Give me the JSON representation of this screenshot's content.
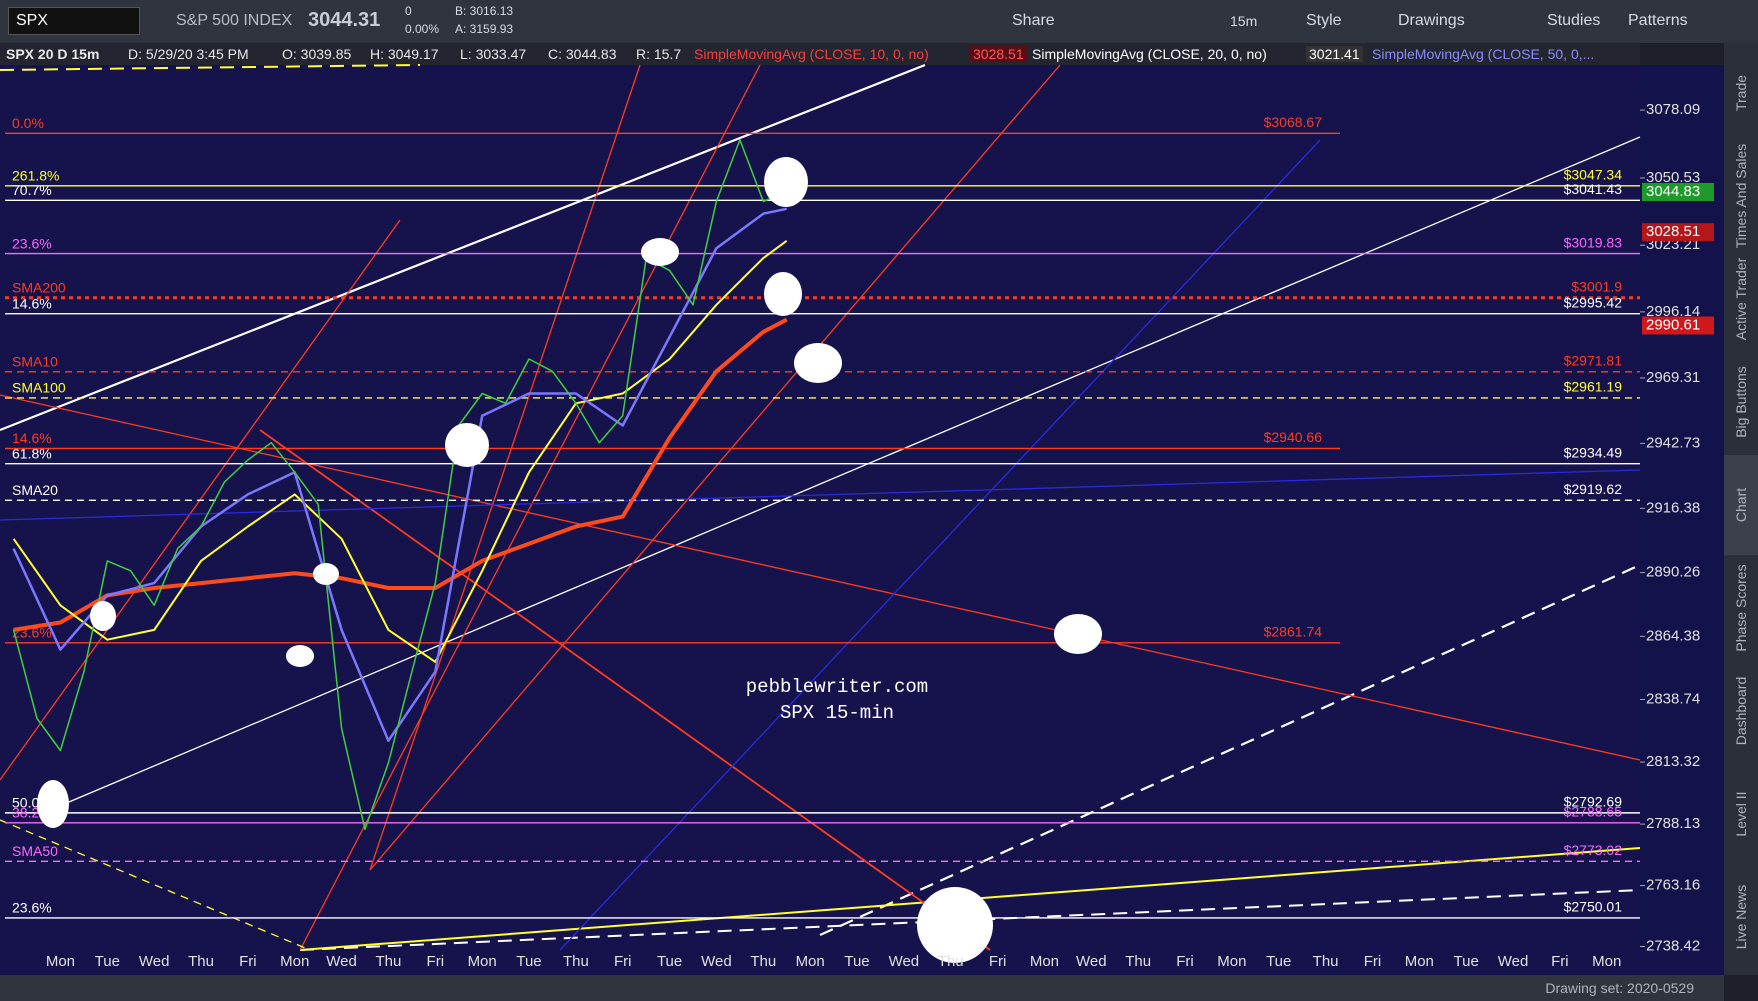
{
  "toolbar": {
    "symbol": "SPX",
    "description": "S&P 500 INDEX",
    "last": "3044.31",
    "change": "0",
    "change_pct": "0.00%",
    "bid": "B: 3016.13",
    "ask": "A: 3159.93",
    "buttons": [
      "Share",
      "15m",
      "Style",
      "Drawings",
      "Studies",
      "Patterns"
    ]
  },
  "info_bar": {
    "chart_name": "SPX 20 D 15m",
    "date": "D: 5/29/20 3:45 PM",
    "open": "O: 3039.85",
    "high": "H: 3049.17",
    "low": "L: 3033.47",
    "close": "C: 3044.83",
    "range": "R: 15.7",
    "study1": "SimpleMovingAvg (CLOSE, 10, 0, no)",
    "study1_value": "3028.51",
    "study2": "SimpleMovingAvg (CLOSE, 20, 0, no)",
    "study2_value": "3021.41",
    "study3": "SimpleMovingAvg (CLOSE, 50, 0,..."
  },
  "side_tabs": [
    "Trade",
    "Times And Sales",
    "Active Trader",
    "Big Buttons",
    "Chart",
    "Phase Scores",
    "Dashboard",
    "Level II",
    "Live News"
  ],
  "status_bar": {
    "drawing_set": "Drawing set: 2020-0529"
  },
  "chart_data": {
    "type": "line",
    "annotations": [
      "pebblewriter.com",
      "SPX 15-min"
    ],
    "categories": [
      "Mon",
      "Tue",
      "Wed",
      "Thu",
      "Fri",
      "Mon",
      "Wed",
      "Thu",
      "Fri",
      "Mon",
      "Tue",
      "Thu",
      "Fri",
      "Tue",
      "Wed",
      "Thu",
      "Mon",
      "Tue",
      "Wed",
      "Thu",
      "Fri",
      "Mon",
      "Wed",
      "Thu",
      "Fri",
      "Mon",
      "Tue",
      "Thu",
      "Fri",
      "Mon",
      "Tue",
      "Wed",
      "Fri",
      "Mon"
    ],
    "xlim": [
      -1.29,
      33.71
    ],
    "ylim": [
      2737,
      3096.4
    ],
    "yticks": [
      3078.09,
      3050.53,
      3023.21,
      2996.14,
      2969.31,
      2942.73,
      2916.38,
      2890.26,
      2864.38,
      2838.74,
      2813.32,
      2788.13,
      2763.16,
      2738.42
    ],
    "series": [
      {
        "name": "SMA200",
        "color": "#ff4a1c",
        "width": 4,
        "x": [
          -1,
          0,
          1,
          2,
          3,
          4,
          5,
          6,
          7,
          8,
          9,
          10,
          11,
          12,
          13,
          14,
          15,
          15.5
        ],
        "values": [
          2867,
          2870,
          2881,
          2884,
          2886,
          2888,
          2890,
          2888,
          2884,
          2884,
          2895,
          2902,
          2909,
          2913,
          2945,
          2972,
          2988,
          2993
        ]
      },
      {
        "name": "SMA100",
        "color": "#ffff33",
        "width": 2,
        "x": [
          -1,
          0,
          1,
          2,
          3,
          4,
          5,
          6,
          7,
          8,
          9,
          10,
          11,
          12,
          13,
          14,
          15,
          15.5
        ],
        "values": [
          2904,
          2877,
          2863,
          2867,
          2895,
          2909,
          2922,
          2904,
          2867,
          2854,
          2891,
          2931,
          2959,
          2963,
          2977,
          2999,
          3018,
          3025
        ]
      },
      {
        "name": "SMA50",
        "color": "#7b78ff",
        "width": 2.5,
        "x": [
          -1,
          0,
          1,
          2,
          3,
          4,
          5,
          6,
          7,
          8,
          9,
          10,
          11,
          12,
          13,
          14,
          15,
          15.5
        ],
        "values": [
          2900,
          2859,
          2881,
          2886,
          2909,
          2922,
          2931,
          2867,
          2822,
          2850,
          2954,
          2963,
          2963,
          2950,
          2986,
          3022,
          3036,
          3038
        ]
      },
      {
        "name": "SPX",
        "color": "#3fcf3f",
        "width": 1.5,
        "x": [
          -1,
          -0.5,
          0,
          0.5,
          1,
          1.5,
          2,
          2.5,
          3,
          3.5,
          4,
          4.5,
          5,
          5.5,
          6,
          6.5,
          7,
          7.5,
          8,
          8.5,
          9,
          9.5,
          10,
          10.5,
          11,
          11.5,
          12,
          12.5,
          13,
          13.5,
          14,
          14.5,
          15,
          15.5
        ],
        "values": [
          2867,
          2831,
          2818,
          2850,
          2895,
          2891,
          2877,
          2900,
          2909,
          2927,
          2936,
          2943,
          2931,
          2918,
          2827,
          2786,
          2813,
          2850,
          2886,
          2950,
          2963,
          2959,
          2977,
          2972,
          2959,
          2943,
          2954,
          3018,
          3013,
          2999,
          3041,
          3066,
          3041,
          3044.83
        ]
      }
    ],
    "levels": [
      {
        "name": "0.0%",
        "value": 3068.67,
        "value_label": "$3068.67",
        "color": "#ff3b1f",
        "style": "solid",
        "extent": "partial"
      },
      {
        "name": "261.8%",
        "value": 3047.34,
        "value_label": "$3047.34",
        "color": "#ffff33",
        "style": "solid",
        "extent": "full"
      },
      {
        "name": "70.7%",
        "value": 3041.43,
        "value_label": "$3041.43",
        "color": "#ffffff",
        "style": "solid",
        "extent": "full"
      },
      {
        "name": "23.6%",
        "value": 3019.83,
        "value_label": "$3019.83",
        "color": "#ff66ff",
        "style": "solid",
        "extent": "full"
      },
      {
        "name": "SMA200",
        "value": 3001.9,
        "value_label": "$3001.9",
        "color": "#ff3b1f",
        "style": "dotted",
        "extent": "full"
      },
      {
        "name": "14.6%",
        "value": 2995.42,
        "value_label": "$2995.42",
        "color": "#ffffff",
        "style": "solid",
        "extent": "full"
      },
      {
        "name": "SMA10",
        "value": 2971.81,
        "value_label": "$2971.81",
        "color": "#ff3b1f",
        "style": "dashed",
        "extent": "full"
      },
      {
        "name": "SMA100",
        "value": 2961.19,
        "value_label": "$2961.19",
        "color": "#ffff33",
        "style": "dashed",
        "extent": "full"
      },
      {
        "name": "14.6%",
        "value": 2940.66,
        "value_label": "$2940.66",
        "color": "#ff3b1f",
        "style": "solid",
        "extent": "partial"
      },
      {
        "name": "61.8%",
        "value": 2934.49,
        "value_label": "$2934.49",
        "color": "#ffffff",
        "style": "solid",
        "extent": "full"
      },
      {
        "name": "SMA20",
        "value": 2919.62,
        "value_label": "$2919.62",
        "color": "#ffffff",
        "style": "dashed",
        "extent": "full"
      },
      {
        "name": "23.6%",
        "value": 2861.74,
        "value_label": "$2861.74",
        "color": "#ff3b1f",
        "style": "solid",
        "extent": "partial"
      },
      {
        "name": "50.0%",
        "value": 2792.69,
        "value_label": "$2792.69",
        "color": "#ffffff",
        "style": "solid",
        "extent": "full"
      },
      {
        "name": "38.2%",
        "value": 2788.65,
        "value_label": "$2788.65",
        "color": "#ff66ff",
        "style": "solid",
        "extent": "full"
      },
      {
        "name": "SMA50",
        "value": 2773.02,
        "value_label": "$2773.02",
        "color": "#ff66ff",
        "style": "dashed",
        "extent": "full"
      },
      {
        "name": "23.6%",
        "value": 2750.01,
        "value_label": "$2750.01",
        "color": "#ffffff",
        "style": "solid",
        "extent": "full"
      }
    ],
    "price_badges": [
      {
        "value": 3044.83,
        "color": "#1d9a2a"
      },
      {
        "value": 3028.51,
        "color": "#b3161b"
      },
      {
        "value": 2990.61,
        "color": "#d0181c"
      }
    ]
  }
}
